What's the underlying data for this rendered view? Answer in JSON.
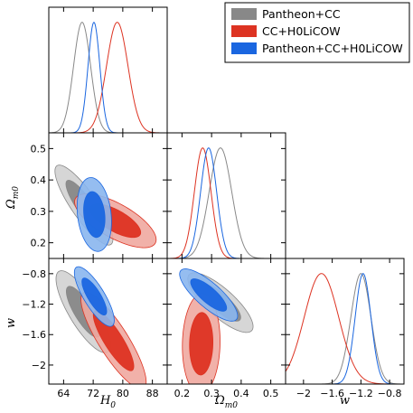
{
  "chart_data": {
    "type": "corner",
    "params": [
      {
        "key": "H0",
        "label": "H",
        "sub": "0",
        "range": [
          60,
          92
        ],
        "ticks": [
          64,
          72,
          80,
          88
        ]
      },
      {
        "key": "Om",
        "label": "Ω",
        "sub": "m0",
        "range": [
          0.15,
          0.55
        ],
        "ticks": [
          0.2,
          0.3,
          0.4,
          0.5
        ]
      },
      {
        "key": "w",
        "label": "w",
        "sub": "",
        "range": [
          -2.25,
          -0.6
        ],
        "ticks": [
          -2.0,
          -1.6,
          -1.2,
          -0.8
        ]
      }
    ],
    "legend": {
      "placement": "top-right"
    },
    "series": [
      {
        "name": "Pantheon+CC",
        "color": "#888888",
        "light": "#d2d2d2",
        "marginals": {
          "H0": {
            "mean": 69.0,
            "sd": 2.3
          },
          "Om": {
            "mean": 0.33,
            "sd": 0.038
          },
          "w": {
            "mean": -1.2,
            "sd": 0.14
          }
        },
        "contours": {
          "Om_H0": {
            "center": [
              69.5,
              0.32
            ],
            "sx": 3.2,
            "sy": 0.052,
            "rho": -0.85
          },
          "w_H0": {
            "center": [
              69.3,
              -1.3
            ],
            "sx": 3.0,
            "sy": 0.22,
            "rho": -0.8
          },
          "w_Om": {
            "center": [
              0.33,
              -1.18
            ],
            "sx": 0.045,
            "sy": 0.16,
            "rho": -0.8
          }
        }
      },
      {
        "name": "CC+H0LiCOW",
        "color": "#dd3322",
        "light": "#f0a8a0",
        "marginals": {
          "H0": {
            "mean": 78.5,
            "sd": 2.9
          },
          "Om": {
            "mean": 0.27,
            "sd": 0.028
          },
          "w": {
            "mean": -1.75,
            "sd": 0.24
          }
        },
        "contours": {
          "Om_H0": {
            "center": [
              78.0,
              0.27
            ],
            "sx": 4.5,
            "sy": 0.035,
            "rho": -0.7
          },
          "w_H0": {
            "center": [
              77.5,
              -1.68
            ],
            "sx": 3.6,
            "sy": 0.26,
            "rho": -0.85
          },
          "w_Om": {
            "center": [
              0.265,
              -1.72
            ],
            "sx": 0.026,
            "sy": 0.27,
            "rho": 0.05
          }
        }
      },
      {
        "name": "Pantheon+CC+H0LiCOW",
        "color": "#1a66e0",
        "light": "#8ab6ee",
        "marginals": {
          "H0": {
            "mean": 72.2,
            "sd": 1.6
          },
          "Om": {
            "mean": 0.29,
            "sd": 0.027
          },
          "w": {
            "mean": -1.17,
            "sd": 0.11
          }
        },
        "contours": {
          "Om_H0": {
            "center": [
              72.3,
              0.29
            ],
            "sx": 1.9,
            "sy": 0.048,
            "rho": -0.2
          },
          "w_H0": {
            "center": [
              72.3,
              -1.1
            ],
            "sx": 2.2,
            "sy": 0.16,
            "rho": -0.8
          },
          "w_Om": {
            "center": [
              0.29,
              -1.08
            ],
            "sx": 0.04,
            "sy": 0.14,
            "rho": -0.8
          }
        }
      }
    ]
  }
}
